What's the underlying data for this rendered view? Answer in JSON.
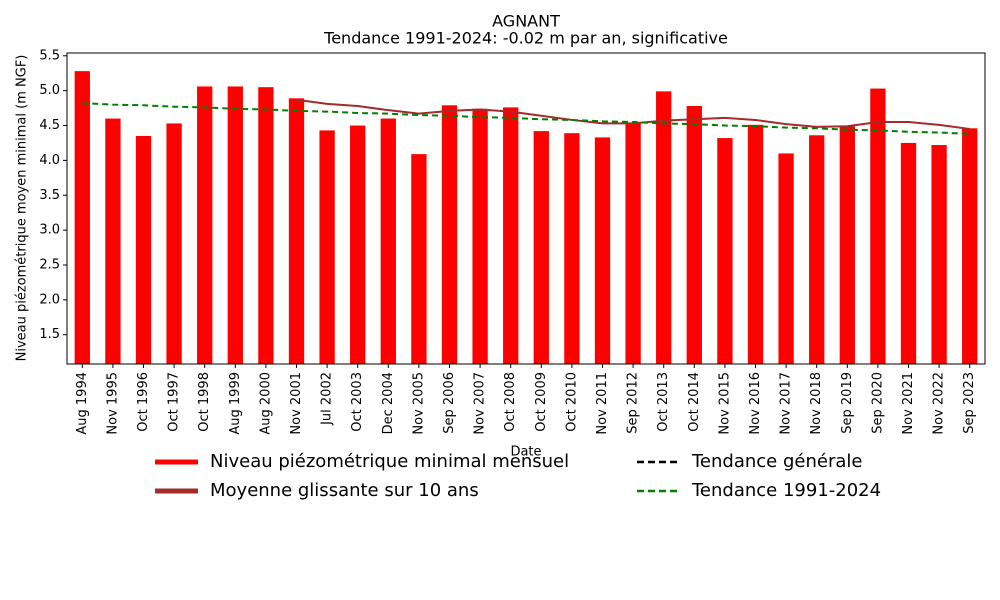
{
  "chart_data": {
    "type": "bar",
    "title": "AGNANT",
    "subtitle": "Tendance 1991-2024: -0.02 m par an, significative",
    "x_label": "Date",
    "y_label": "Niveau piézométrique moyen minimal (m NGF)",
    "categories": [
      "Aug 1994",
      "Nov 1995",
      "Oct 1996",
      "Oct 1997",
      "Oct 1998",
      "Aug 1999",
      "Aug 2000",
      "Nov 2001",
      "Jul 2002",
      "Oct 2003",
      "Dec 2004",
      "Nov 2005",
      "Sep 2006",
      "Nov 2007",
      "Oct 2008",
      "Oct 2009",
      "Oct 2010",
      "Nov 2011",
      "Sep 2012",
      "Oct 2013",
      "Oct 2014",
      "Nov 2015",
      "Nov 2016",
      "Nov 2017",
      "Nov 2018",
      "Sep 2019",
      "Sep 2020",
      "Nov 2021",
      "Nov 2022",
      "Sep 2023"
    ],
    "series": [
      {
        "name": "Niveau piézométrique minimal mensuel",
        "type": "bar",
        "color": "#ff0000",
        "values": [
          5.28,
          4.6,
          4.35,
          4.53,
          5.06,
          5.06,
          5.05,
          4.89,
          4.43,
          4.5,
          4.6,
          4.09,
          4.79,
          4.74,
          4.76,
          4.42,
          4.39,
          4.33,
          4.53,
          4.99,
          4.78,
          4.32,
          4.51,
          4.1,
          4.36,
          4.49,
          5.03,
          4.25,
          4.22,
          4.46
        ]
      },
      {
        "name": "Moyenne glissante sur 10 ans",
        "type": "line",
        "color": "#a52a2a",
        "dash": false,
        "values": [
          null,
          null,
          null,
          null,
          null,
          null,
          null,
          4.87,
          4.81,
          4.78,
          4.72,
          4.67,
          4.71,
          4.73,
          4.7,
          4.64,
          4.58,
          4.53,
          4.53,
          4.57,
          4.59,
          4.61,
          4.58,
          4.52,
          4.48,
          4.49,
          4.55,
          4.55,
          4.51,
          4.45
        ]
      },
      {
        "name": "Tendance générale",
        "type": "line",
        "color": "#000000",
        "dash": true,
        "values": [
          null,
          null,
          null,
          null,
          null,
          null,
          null,
          null,
          null,
          null,
          null,
          null,
          null,
          null,
          null,
          null,
          null,
          null,
          null,
          null,
          null,
          null,
          null,
          null,
          null,
          null,
          null,
          null,
          null,
          null
        ]
      },
      {
        "name": "Tendance 1991-2024",
        "type": "line",
        "color": "#008000",
        "dash": true,
        "values": [
          4.82,
          4.8,
          4.79,
          4.77,
          4.76,
          4.74,
          4.73,
          4.71,
          4.7,
          4.68,
          4.67,
          4.65,
          4.64,
          4.62,
          4.61,
          4.59,
          4.58,
          4.56,
          4.55,
          4.53,
          4.52,
          4.5,
          4.49,
          4.47,
          4.46,
          4.44,
          4.43,
          4.41,
          4.4,
          4.38
        ]
      }
    ],
    "ylim": [
      1.08,
      5.54
    ],
    "yticks": [
      {
        "value": 1.5,
        "label": "1.5"
      },
      {
        "value": 2,
        "label": "2.0"
      },
      {
        "value": 2.5,
        "label": "2.5"
      },
      {
        "value": 3,
        "label": "3.0"
      },
      {
        "value": 3.5,
        "label": "3.5"
      },
      {
        "value": 4,
        "label": "4.0"
      },
      {
        "value": 4.5,
        "label": "4.5"
      },
      {
        "value": 5,
        "label": "5.0"
      },
      {
        "value": 5.5,
        "label": "5.5"
      }
    ],
    "grid": false
  }
}
